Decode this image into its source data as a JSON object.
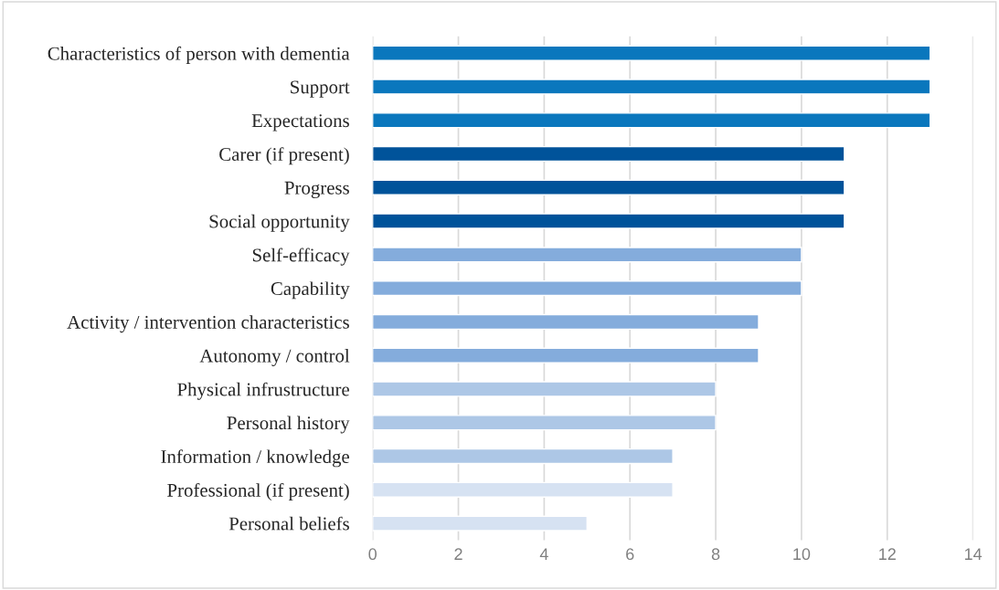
{
  "chart_data": {
    "type": "bar",
    "orientation": "horizontal",
    "categories": [
      "Characteristics of person with dementia",
      "Support",
      "Expectations",
      "Carer (if present)",
      "Progress",
      "Social opportunity",
      "Self-efficacy",
      "Capability",
      "Activity / intervention characteristics",
      "Autonomy / control",
      "Physical infrustructure",
      "Personal history",
      "Information / knowledge",
      "Professional (if present)",
      "Personal beliefs"
    ],
    "values": [
      13,
      13,
      13,
      11,
      11,
      11,
      10,
      10,
      9,
      9,
      8,
      8,
      7,
      7,
      5
    ],
    "colors": [
      "#0a77bd",
      "#0a77bd",
      "#0a77bd",
      "#00539a",
      "#00539a",
      "#00539a",
      "#84acdc",
      "#84acdc",
      "#84acdc",
      "#84acdc",
      "#adc7e6",
      "#adc7e6",
      "#adc7e6",
      "#d6e2f2",
      "#d6e2f2"
    ],
    "xlim": [
      0,
      14
    ],
    "xticks": [
      0,
      2,
      4,
      6,
      8,
      10,
      12,
      14
    ],
    "grid": "x",
    "legend": false
  }
}
